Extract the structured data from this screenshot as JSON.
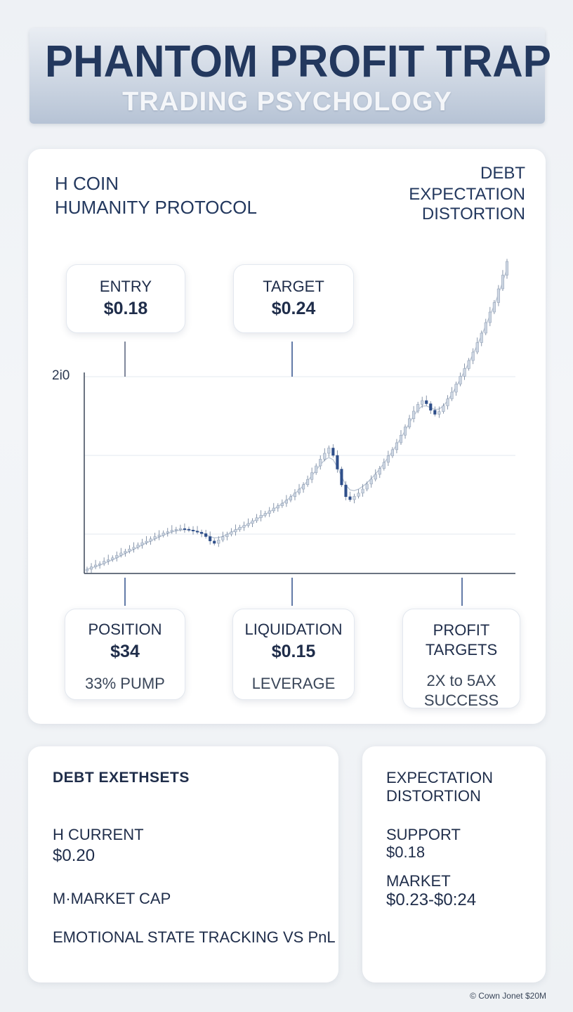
{
  "header": {
    "title": "PHANTOM PROFIT TRAP",
    "subtitle": "TRADING PSYCHOLOGY"
  },
  "coin": {
    "line1": "H COIN",
    "line2": "HUMANITY PROTOCOL"
  },
  "right_heading": [
    "DEBT",
    "EXPECTATION",
    "DISTORTION"
  ],
  "cards": {
    "entry": {
      "label": "ENTRY",
      "value": "$0.18"
    },
    "target": {
      "label": "TARGET",
      "value": "$0.24"
    },
    "position": {
      "label": "POSITION",
      "value": "$34",
      "note": "33% PUMP"
    },
    "liquidation": {
      "label": "LIQUIDATION",
      "value": "$0.15",
      "note": "LEVERAGE"
    },
    "profit": {
      "label1": "PROFIT",
      "label2": "TARGETS",
      "note1": "2X to 5AX",
      "note2": "SUCCESS"
    }
  },
  "chart_data": {
    "type": "candlestick",
    "title": "",
    "xlabel": "",
    "ylabel": "",
    "ytick_labels": [
      "2i0"
    ],
    "grid": true,
    "colors": {
      "up": "#cdd6e2",
      "down": "#2f4f8a",
      "wick": "#6b7c96",
      "ma": "#b9c4d3"
    },
    "close_values": [
      2.0,
      3.1,
      4.0,
      4.6,
      5.8,
      6.5,
      7.4,
      8.6,
      9.7,
      10.5,
      11.6,
      12.4,
      13.5,
      14.6,
      15.3,
      16.4,
      17.5,
      18.1,
      19.2,
      19.8,
      20.5,
      20.9,
      21.3,
      21.0,
      20.6,
      20.1,
      19.6,
      18.9,
      17.5,
      15.4,
      14.3,
      15.9,
      17.4,
      18.6,
      19.7,
      20.8,
      21.9,
      22.8,
      23.7,
      25.0,
      26.4,
      27.6,
      28.5,
      29.7,
      31.0,
      32.1,
      33.3,
      34.8,
      36.4,
      38.2,
      40.0,
      42.1,
      44.6,
      47.8,
      51.0,
      54.2,
      57.0,
      59.5,
      56.0,
      49.5,
      42.0,
      36.4,
      35.0,
      36.6,
      38.1,
      40.0,
      42.4,
      44.7,
      47.0,
      49.8,
      52.7,
      55.8,
      58.7,
      62.0,
      65.6,
      69.5,
      73.4,
      77.0,
      80.2,
      82.0,
      80.5,
      77.4,
      75.5,
      76.8,
      79.5,
      82.8,
      86.0,
      89.8,
      93.5,
      97.2,
      101.0,
      105.0,
      109.5,
      114.0,
      119.0,
      124.0,
      128.5,
      135.0,
      141.5,
      148.0
    ],
    "ma_values": [
      2.0,
      2.6,
      3.3,
      3.9,
      4.8,
      5.6,
      6.5,
      7.4,
      8.5,
      9.5,
      10.5,
      11.4,
      12.5,
      13.5,
      14.5,
      15.4,
      16.4,
      17.3,
      18.2,
      19.0,
      19.7,
      20.2,
      20.6,
      20.8,
      20.7,
      20.4,
      20.0,
      19.3,
      18.4,
      17.5,
      16.9,
      17.0,
      17.6,
      18.5,
      19.5,
      20.5,
      21.5,
      22.4,
      23.4,
      24.5,
      25.7,
      26.9,
      28.0,
      29.2,
      30.5,
      31.8,
      33.1,
      34.6,
      36.2,
      37.9,
      39.7,
      41.7,
      43.9,
      46.4,
      49.0,
      51.6,
      53.8,
      55.0,
      54.0,
      50.5,
      46.0,
      42.0,
      39.6,
      39.3,
      40.0,
      41.3,
      43.0,
      45.0,
      47.2,
      49.6,
      52.3,
      55.1,
      58.0,
      61.0,
      64.3,
      67.8,
      71.4,
      74.8,
      77.6,
      79.4,
      79.5,
      78.6,
      77.8,
      78.0,
      79.5,
      82.0,
      85.0,
      88.5,
      92.2,
      96.0,
      99.9,
      104.0,
      108.4,
      112.9,
      117.6,
      122.4,
      127.2,
      132.6,
      138.4,
      144.6
    ],
    "annotations": [
      "ENTRY $0.18",
      "TARGET $0.24",
      "POSITION $34",
      "LIQUIDATION $0.15",
      "PROFIT TARGETS"
    ]
  },
  "bottom_left": {
    "heading": "DEBT EXETHSETS",
    "current_label": "H CURRENT",
    "current_value": "$0.20",
    "market_cap_label": "M·MARKET CAP",
    "emotional": "EMOTIONAL STATE TRACKING VS PnL"
  },
  "bottom_right": {
    "heading1": "EXPECTATION",
    "heading2": "DISTORTION",
    "support_label": "SUPPORT",
    "support_value": "$0.18",
    "market_label": "MARKET",
    "market_value": "$0.23-$0:24"
  },
  "footer": "© Cown Jonet $20M"
}
